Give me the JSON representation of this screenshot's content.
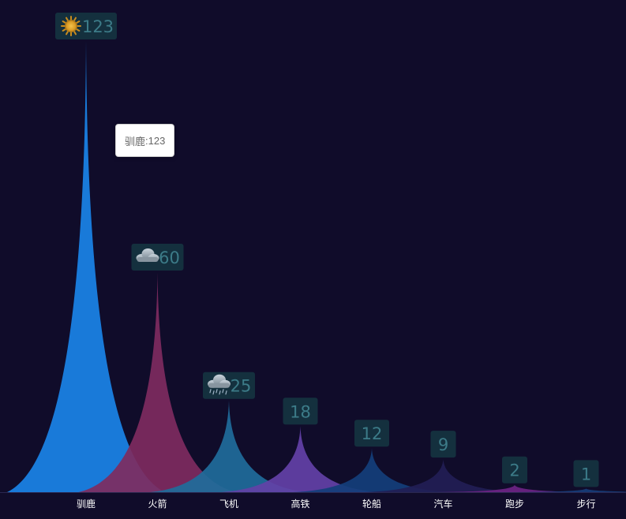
{
  "chart_data": {
    "type": "area",
    "categories": [
      "驯鹿",
      "火箭",
      "飞机",
      "高铁",
      "轮船",
      "汽车",
      "跑步",
      "步行"
    ],
    "values": [
      123,
      60,
      25,
      18,
      12,
      9,
      2,
      1
    ],
    "label_icons": [
      "sun-icon",
      "cloud-icon",
      "rain-cloud-icon",
      "",
      "",
      "",
      "",
      ""
    ],
    "series_colors": [
      "#1a84e8",
      "#7e2b5f",
      "#1f6d9b",
      "#6341a7",
      "#133f7b",
      "#221e55",
      "#6d2484",
      "#173d78"
    ],
    "ylim": [
      0,
      123
    ],
    "grid": false,
    "label_box_color": "#14303e",
    "label_text_color": "#3c7b88",
    "background": "#100c2a"
  },
  "tooltip": {
    "series": "驯鹿",
    "value": "123"
  }
}
